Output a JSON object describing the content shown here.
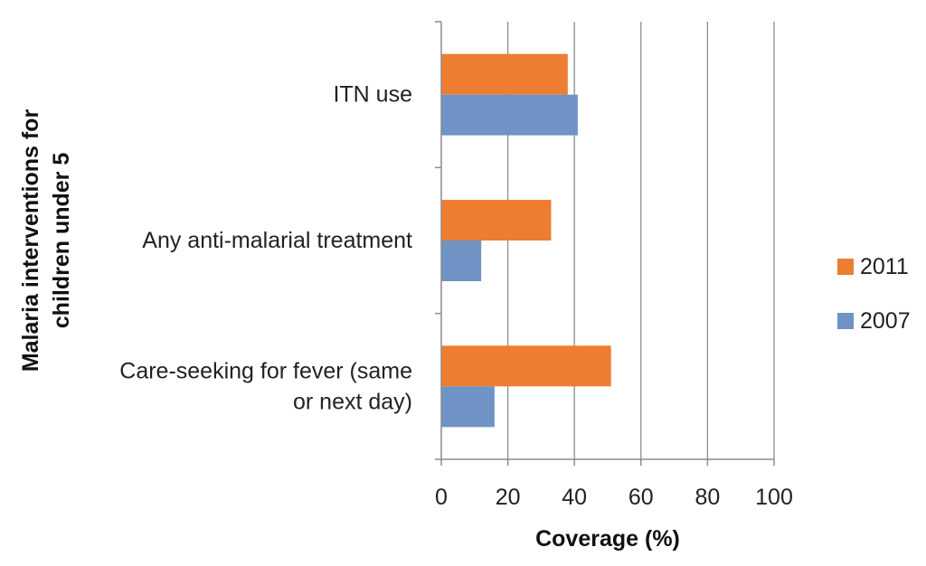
{
  "chart_data": {
    "type": "bar",
    "orientation": "horizontal",
    "categories": [
      "ITN use",
      "Any anti-malarial treatment",
      "Care-seeking for fever (same or next day)"
    ],
    "category_lines": [
      [
        "ITN use"
      ],
      [
        "Any anti-malarial treatment"
      ],
      [
        "Care-seeking for fever (same",
        "or next day)"
      ]
    ],
    "series": [
      {
        "name": "2011",
        "color": "#ED7D31",
        "values": [
          38,
          33,
          51
        ]
      },
      {
        "name": "2007",
        "color": "#6F93C4",
        "values": [
          41,
          12,
          16
        ]
      }
    ],
    "xlabel": "Coverage (%)",
    "ylabel_lines": [
      "Malaria interventions for",
      "children under 5"
    ],
    "xlim": [
      0,
      100
    ],
    "xticks": [
      0,
      20,
      40,
      60,
      80,
      100
    ],
    "grid": "vertical",
    "legend_position": "right"
  }
}
